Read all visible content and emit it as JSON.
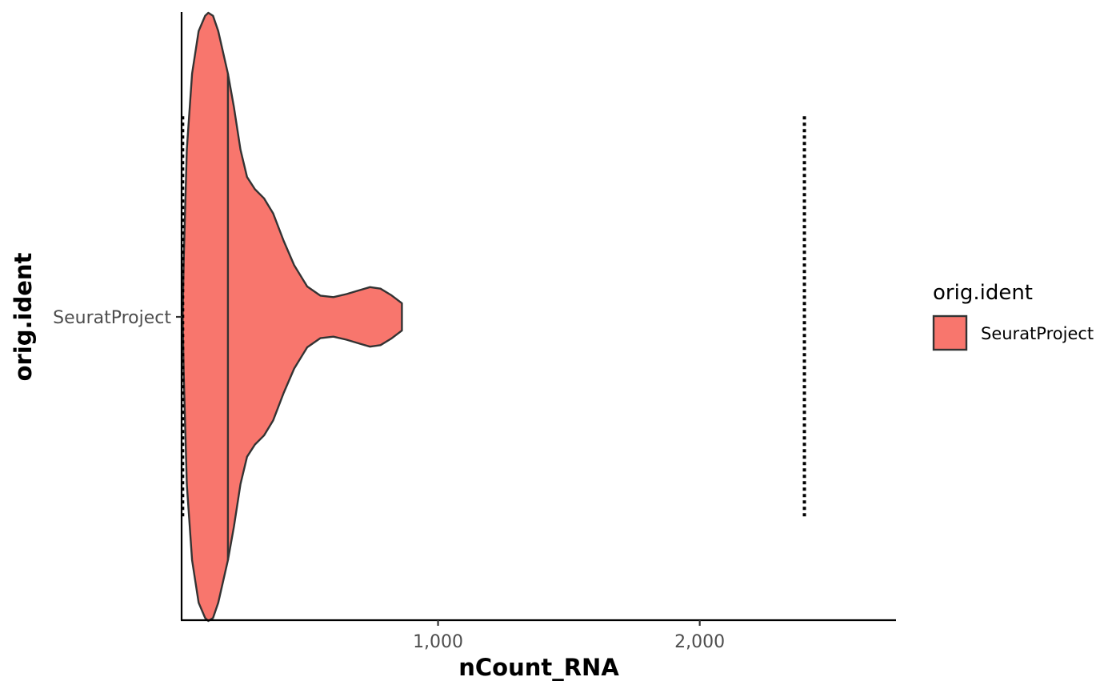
{
  "chart_data": {
    "type": "violin",
    "orientation": "horizontal",
    "xlabel": "nCount_RNA",
    "ylabel": "orig.ident",
    "xlim": [
      20,
      2750
    ],
    "x_ticks": [
      1000,
      2000
    ],
    "x_tick_labels": [
      "1,000",
      "2,000"
    ],
    "categories": [
      "SeuratProject"
    ],
    "grid": false,
    "legend": {
      "title": "orig.ident",
      "position": "right",
      "entries": [
        {
          "label": "SeuratProject",
          "color": "#F8766D"
        }
      ]
    },
    "series": [
      {
        "name": "SeuratProject",
        "color": "#F8766D",
        "outline_color": "#333333",
        "min": 24,
        "max": 862,
        "median": 197,
        "density": [
          [
            24,
            0.0
          ],
          [
            28,
            0.18
          ],
          [
            40,
            0.55
          ],
          [
            60,
            0.8
          ],
          [
            85,
            0.94
          ],
          [
            110,
            0.99
          ],
          [
            122,
            1.0
          ],
          [
            140,
            0.99
          ],
          [
            160,
            0.94
          ],
          [
            197,
            0.8
          ],
          [
            220,
            0.69
          ],
          [
            245,
            0.55
          ],
          [
            270,
            0.46
          ],
          [
            300,
            0.42
          ],
          [
            335,
            0.39
          ],
          [
            370,
            0.34
          ],
          [
            410,
            0.25
          ],
          [
            450,
            0.17
          ],
          [
            500,
            0.1
          ],
          [
            550,
            0.07
          ],
          [
            600,
            0.065
          ],
          [
            650,
            0.075
          ],
          [
            700,
            0.088
          ],
          [
            740,
            0.098
          ],
          [
            780,
            0.093
          ],
          [
            820,
            0.072
          ],
          [
            862,
            0.045
          ]
        ]
      }
    ],
    "reference_lines": [
      {
        "x": 24,
        "y_extent": [
          -0.66,
          0.66
        ],
        "style": "dotted",
        "color": "#000000"
      },
      {
        "x": 2400,
        "y_extent": [
          -0.66,
          0.66
        ],
        "style": "dotted",
        "color": "#000000"
      }
    ]
  }
}
